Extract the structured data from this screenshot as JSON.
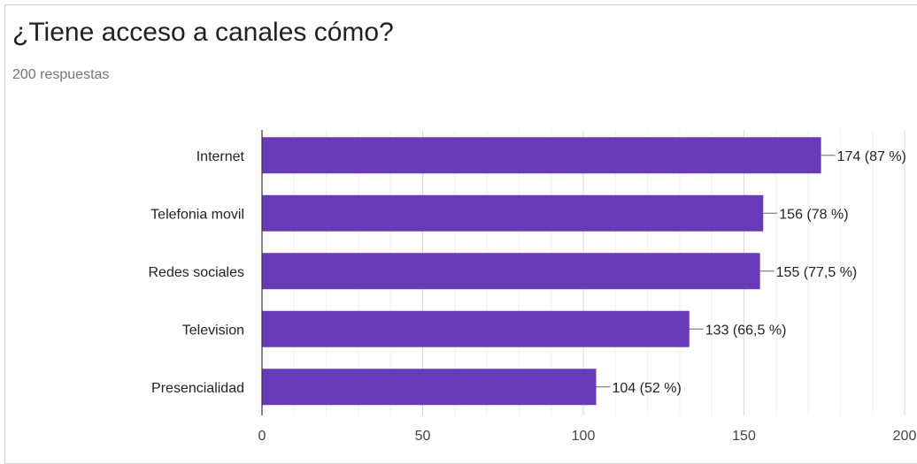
{
  "header": {
    "title": "¿Tiene acceso a canales cómo?",
    "subtitle": "200 respuestas"
  },
  "colors": {
    "bar": "#673ab7",
    "grid": "#e6e6e6",
    "axis": "#333333"
  },
  "chart_data": {
    "type": "bar",
    "orientation": "horizontal",
    "title": "¿Tiene acceso a canales cómo?",
    "subtitle": "200 respuestas",
    "categories": [
      "Internet",
      "Telefonia movil",
      "Redes sociales",
      "Television",
      "Presencialidad"
    ],
    "values": [
      174,
      156,
      155,
      133,
      104
    ],
    "data_labels": [
      "174 (87 %)",
      "156 (78 %)",
      "155 (77,5 %)",
      "133 (66,5 %)",
      "104 (52 %)"
    ],
    "x_ticks": [
      0,
      50,
      100,
      150,
      200
    ],
    "xlim": [
      0,
      200
    ],
    "grid": true,
    "legend": "none"
  }
}
